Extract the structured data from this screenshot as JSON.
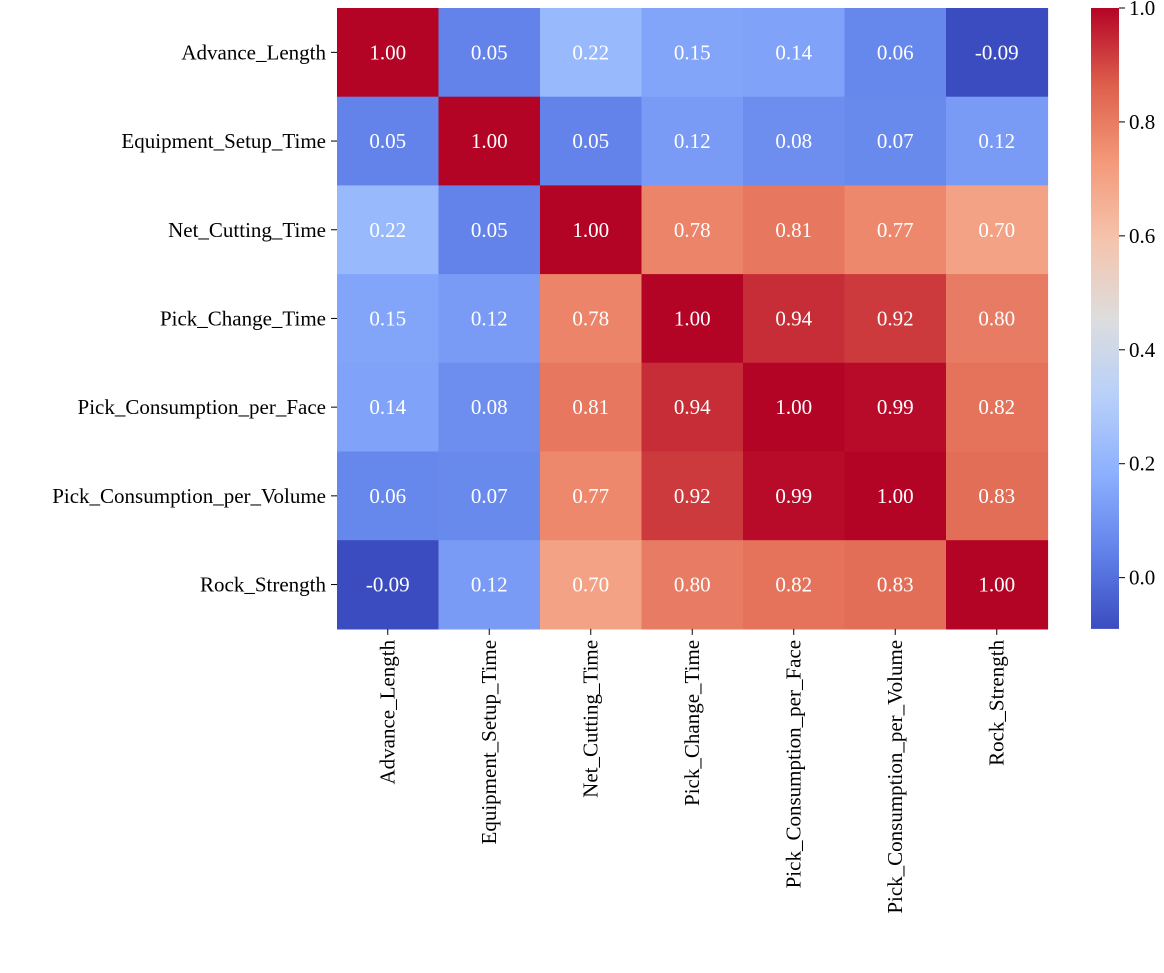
{
  "chart_data": {
    "type": "heatmap",
    "x_labels": [
      "Advance_Length",
      "Equipment_Setup_Time",
      "Net_Cutting_Time",
      "Pick_Change_Time",
      "Pick_Consumption_per_Face",
      "Pick_Consumption_per_Volume",
      "Rock_Strength"
    ],
    "y_labels": [
      "Advance_Length",
      "Equipment_Setup_Time",
      "Net_Cutting_Time",
      "Pick_Change_Time",
      "Pick_Consumption_per_Face",
      "Pick_Consumption_per_Volume",
      "Rock_Strength"
    ],
    "values": [
      [
        1.0,
        0.05,
        0.22,
        0.15,
        0.14,
        0.06,
        -0.09
      ],
      [
        0.05,
        1.0,
        0.05,
        0.12,
        0.08,
        0.07,
        0.12
      ],
      [
        0.22,
        0.05,
        1.0,
        0.78,
        0.81,
        0.77,
        0.7
      ],
      [
        0.15,
        0.12,
        0.78,
        1.0,
        0.94,
        0.92,
        0.8
      ],
      [
        0.14,
        0.08,
        0.81,
        0.94,
        1.0,
        0.99,
        0.82
      ],
      [
        0.06,
        0.07,
        0.77,
        0.92,
        0.99,
        1.0,
        0.83
      ],
      [
        -0.09,
        0.12,
        0.7,
        0.8,
        0.82,
        0.83,
        1.0
      ]
    ],
    "cell_labels": [
      [
        "1.00",
        "0.05",
        "0.22",
        "0.15",
        "0.14",
        "0.06",
        "-0.09"
      ],
      [
        "0.05",
        "1.00",
        "0.05",
        "0.12",
        "0.08",
        "0.07",
        "0.12"
      ],
      [
        "0.22",
        "0.05",
        "1.00",
        "0.78",
        "0.81",
        "0.77",
        "0.70"
      ],
      [
        "0.15",
        "0.12",
        "0.78",
        "1.00",
        "0.94",
        "0.92",
        "0.80"
      ],
      [
        "0.14",
        "0.08",
        "0.81",
        "0.94",
        "1.00",
        "0.99",
        "0.82"
      ],
      [
        "0.06",
        "0.07",
        "0.77",
        "0.92",
        "0.99",
        "1.00",
        "0.83"
      ],
      [
        "-0.09",
        "0.12",
        "0.70",
        "0.80",
        "0.82",
        "0.83",
        "1.00"
      ]
    ],
    "colormap": "coolwarm",
    "colorbar": {
      "vmin": -0.09,
      "vmax": 1.0,
      "ticks": [
        0.0,
        0.2,
        0.4,
        0.6,
        0.8,
        1.0
      ],
      "tick_labels": [
        "0.0",
        "0.2",
        "0.4",
        "0.6",
        "0.8",
        "1.0"
      ]
    },
    "title": "",
    "xlabel": "",
    "ylabel": ""
  }
}
